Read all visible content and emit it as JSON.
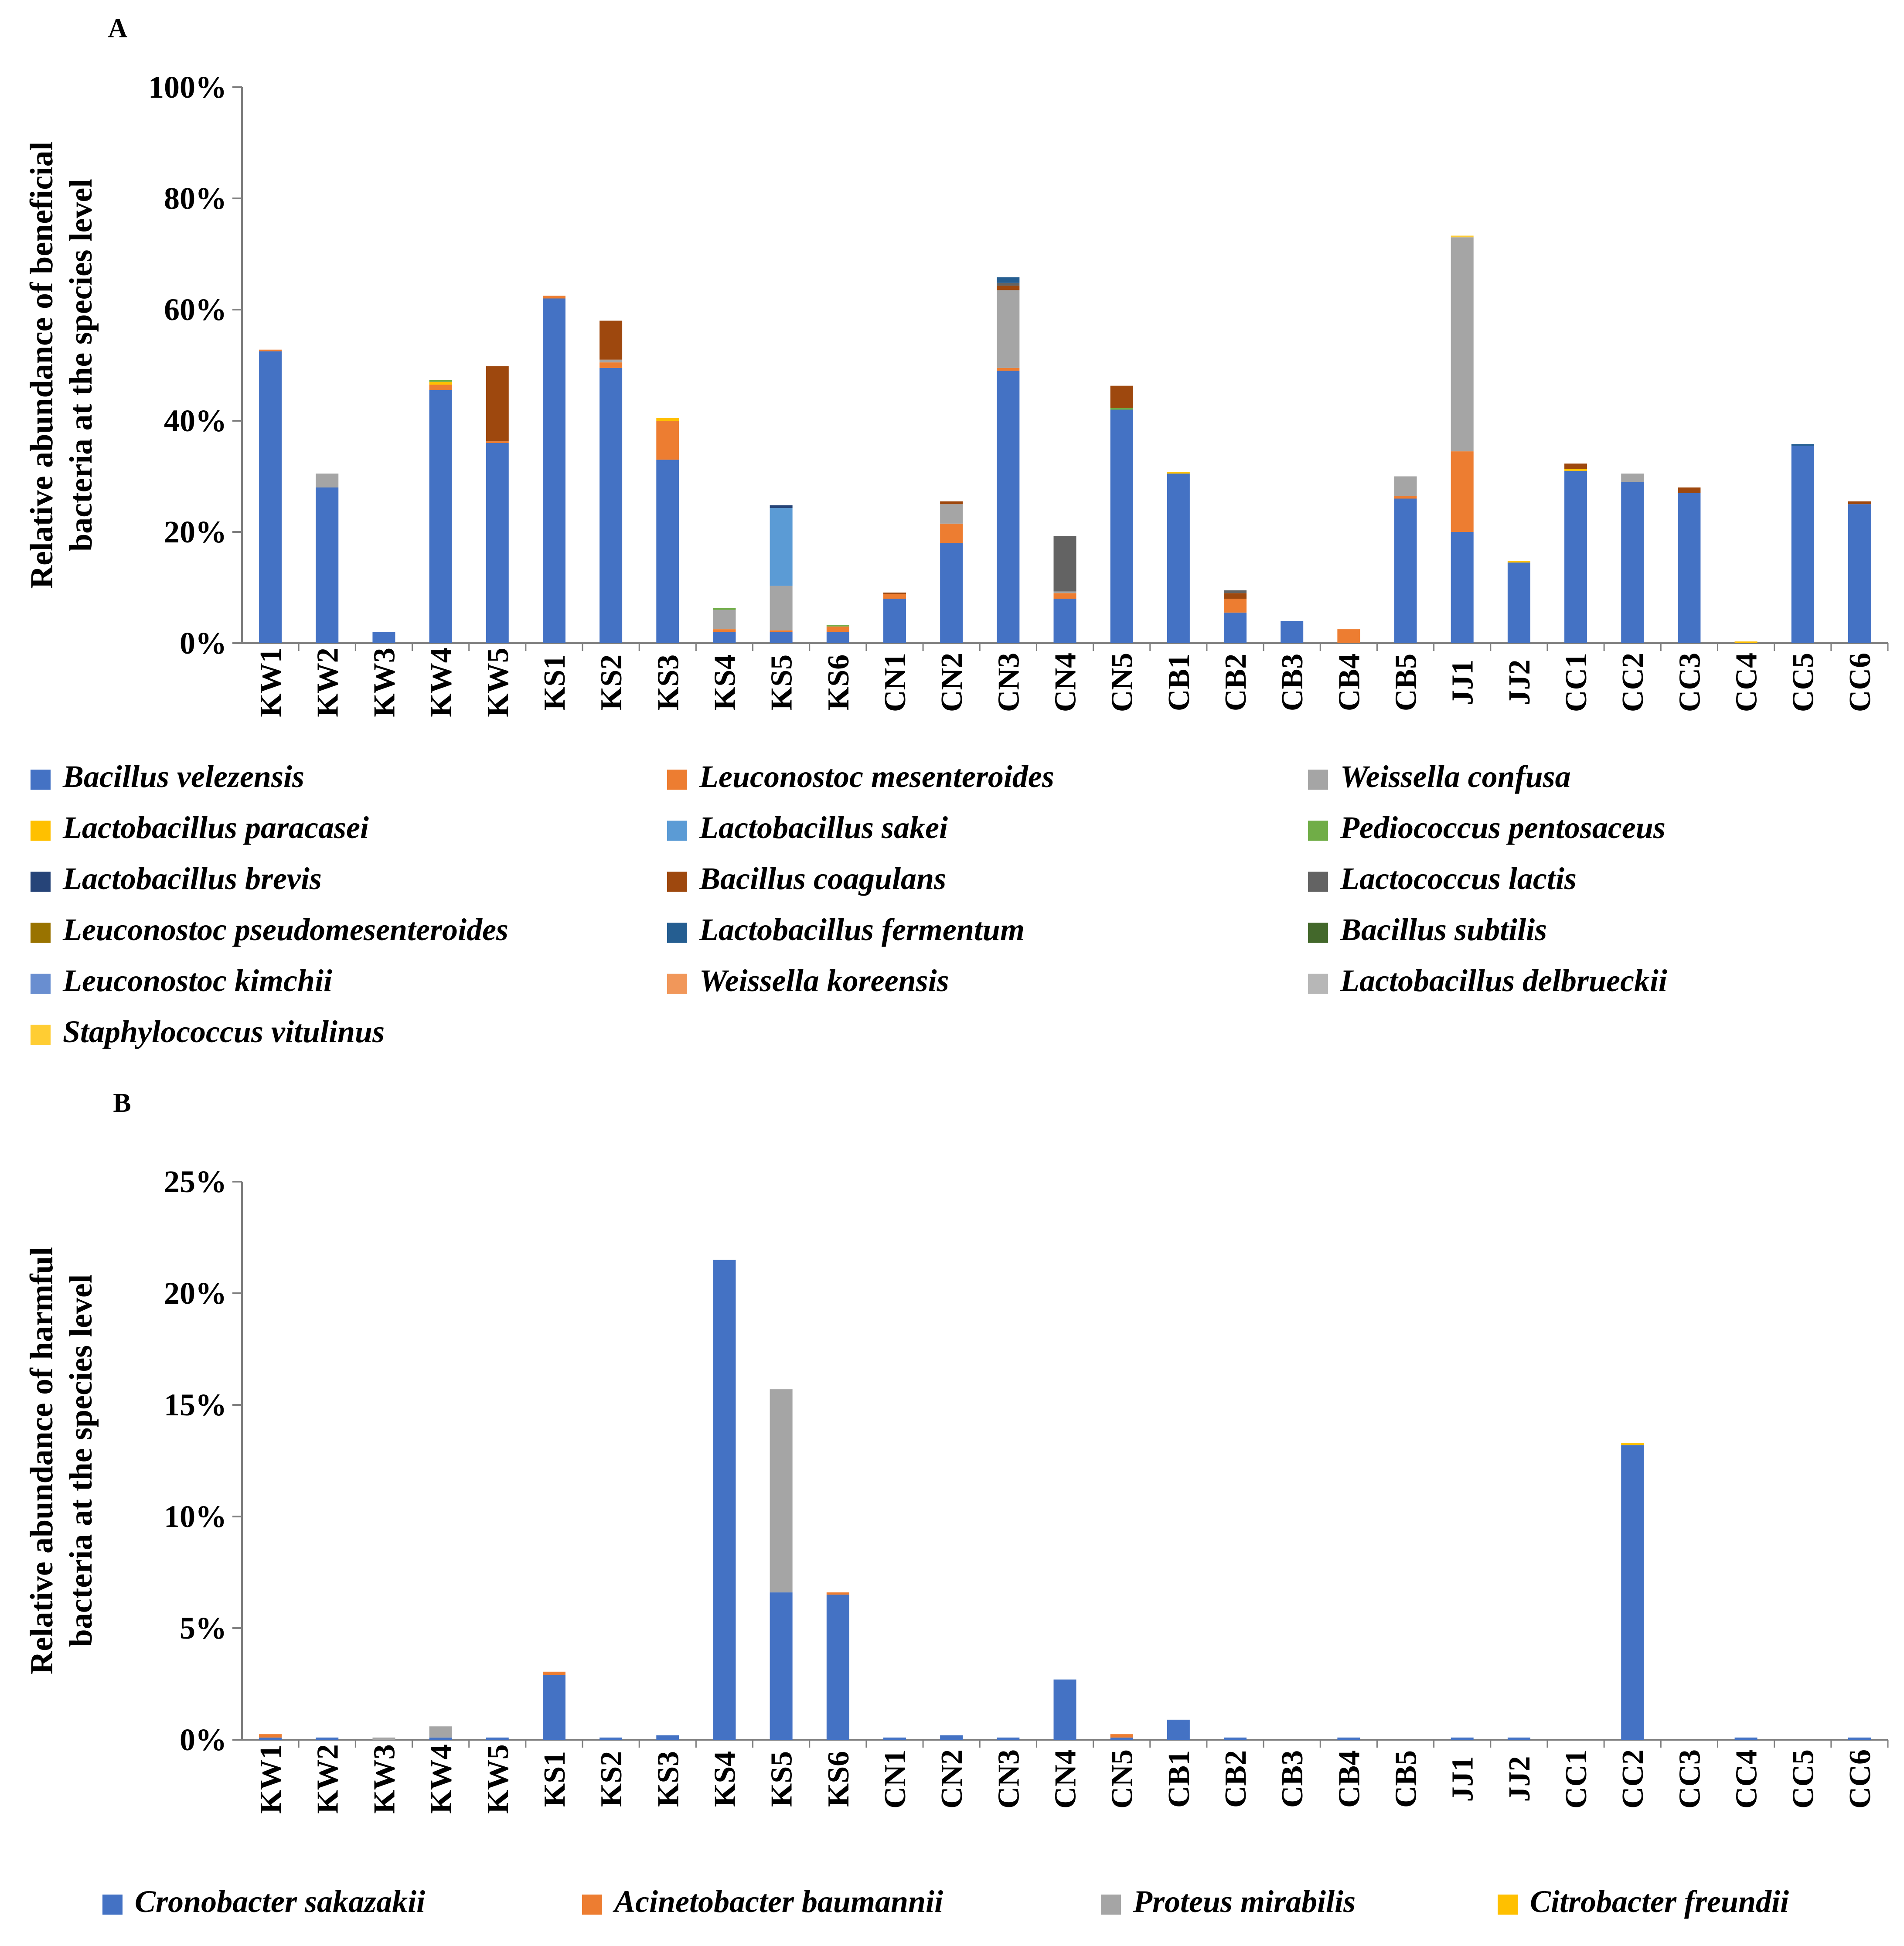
{
  "chart_data": [
    {
      "panel_label": "A",
      "type": "bar",
      "stacked": true,
      "ylabel_line1": "Relative abundance of beneficial",
      "ylabel_line2": "bacteria at the species level",
      "ylim": [
        0,
        100
      ],
      "yticks": [
        0,
        20,
        40,
        60,
        80,
        100
      ],
      "ytick_labels": [
        "0%",
        "20%",
        "40%",
        "60%",
        "80%",
        "100%"
      ],
      "categories": [
        "KW1",
        "KW2",
        "KW3",
        "KW4",
        "KW5",
        "KS1",
        "KS2",
        "KS3",
        "KS4",
        "KS5",
        "KS6",
        "CN1",
        "CN2",
        "CN3",
        "CN4",
        "CN5",
        "CB1",
        "CB2",
        "CB3",
        "CB4",
        "CB5",
        "JJ1",
        "JJ2",
        "CC1",
        "CC2",
        "CC3",
        "CC4",
        "CC5",
        "CC6"
      ],
      "series": [
        {
          "name": "Bacillus velezensis",
          "color": "#4472C4",
          "values": [
            52.5,
            28,
            2,
            45.5,
            36,
            62,
            49.5,
            33,
            2,
            2,
            2,
            8,
            18,
            49,
            8,
            42,
            30.5,
            5.5,
            4,
            0,
            26,
            20,
            14.5,
            31,
            29,
            27,
            0,
            35.5,
            25
          ]
        },
        {
          "name": "Leuconostoc mesenteroides",
          "color": "#ED7D31",
          "values": [
            0.3,
            0,
            0,
            1,
            0.3,
            0.5,
            1,
            7,
            0.5,
            0.3,
            1,
            0.8,
            3.5,
            0.5,
            1,
            0,
            0,
            2.5,
            0,
            2.5,
            0.5,
            14.5,
            0,
            0,
            0,
            0,
            0,
            0,
            0
          ]
        },
        {
          "name": "Weissella confusa",
          "color": "#A5A5A5",
          "values": [
            0,
            2.5,
            0,
            0,
            0,
            0,
            0.5,
            0,
            3.5,
            8,
            0,
            0,
            3.5,
            14,
            0.3,
            0,
            0,
            0,
            0,
            0,
            3.5,
            38.5,
            0,
            0,
            1.5,
            0,
            0,
            0,
            0
          ]
        },
        {
          "name": "Lactobacillus paracasei",
          "color": "#FFC000",
          "values": [
            0,
            0,
            0,
            0.5,
            0,
            0,
            0,
            0.5,
            0,
            0,
            0,
            0,
            0,
            0,
            0,
            0,
            0.3,
            0,
            0,
            0,
            0,
            0,
            0.3,
            0.3,
            0,
            0,
            0.3,
            0,
            0
          ]
        },
        {
          "name": "Lactobacillus sakei",
          "color": "#5B9BD5",
          "values": [
            0,
            0,
            0,
            0,
            0,
            0,
            0,
            0,
            0,
            14,
            0,
            0,
            0,
            0,
            0,
            0,
            0,
            0,
            0,
            0,
            0,
            0,
            0,
            0,
            0,
            0,
            0,
            0,
            0
          ]
        },
        {
          "name": "Pediococcus pentosaceus",
          "color": "#70AD47",
          "values": [
            0,
            0,
            0,
            0.3,
            0,
            0,
            0,
            0,
            0.3,
            0,
            0.3,
            0,
            0,
            0,
            0,
            0.3,
            0,
            0,
            0,
            0,
            0,
            0,
            0,
            0,
            0,
            0,
            0,
            0,
            0
          ]
        },
        {
          "name": "Lactobacillus brevis",
          "color": "#264478",
          "values": [
            0,
            0,
            0,
            0,
            0,
            0,
            0,
            0,
            0,
            0.5,
            0,
            0,
            0,
            0,
            0,
            0,
            0,
            0,
            0,
            0,
            0,
            0,
            0,
            0,
            0,
            0,
            0,
            0,
            0
          ]
        },
        {
          "name": "Bacillus coagulans",
          "color": "#9E480E",
          "values": [
            0,
            0,
            0,
            0,
            13.5,
            0,
            7,
            0,
            0,
            0,
            0,
            0.3,
            0.5,
            0.8,
            0,
            4,
            0,
            1,
            0,
            0,
            0,
            0,
            0,
            1,
            0,
            1,
            0,
            0,
            0.5
          ]
        },
        {
          "name": "Lactococcus lactis",
          "color": "#636363",
          "values": [
            0,
            0,
            0,
            0,
            0,
            0,
            0,
            0,
            0,
            0,
            0,
            0,
            0,
            0.5,
            10,
            0,
            0,
            0.5,
            0,
            0,
            0,
            0,
            0,
            0,
            0,
            0,
            0,
            0,
            0
          ]
        },
        {
          "name": "Leuconostoc pseudomesenteroides",
          "color": "#997300",
          "values": [
            0,
            0,
            0,
            0,
            0,
            0,
            0,
            0,
            0,
            0,
            0,
            0,
            0,
            0,
            0,
            0,
            0,
            0,
            0,
            0,
            0,
            0,
            0,
            0,
            0,
            0,
            0,
            0,
            0
          ]
        },
        {
          "name": "Lactobacillus fermentum",
          "color": "#255E91",
          "values": [
            0,
            0,
            0,
            0,
            0,
            0,
            0,
            0,
            0,
            0,
            0,
            0,
            0,
            1,
            0,
            0,
            0,
            0,
            0,
            0,
            0,
            0,
            0,
            0,
            0,
            0,
            0,
            0.3,
            0
          ]
        },
        {
          "name": "Bacillus subtilis",
          "color": "#43682B",
          "values": [
            0,
            0,
            0,
            0,
            0,
            0,
            0,
            0,
            0,
            0,
            0,
            0,
            0,
            0,
            0,
            0,
            0,
            0,
            0,
            0,
            0,
            0,
            0,
            0,
            0,
            0,
            0,
            0,
            0
          ]
        },
        {
          "name": "Leuconostoc kimchii",
          "color": "#698ED0",
          "values": [
            0,
            0,
            0,
            0,
            0,
            0,
            0,
            0,
            0,
            0,
            0,
            0,
            0,
            0,
            0,
            0,
            0,
            0,
            0,
            0,
            0,
            0,
            0,
            0,
            0,
            0,
            0,
            0,
            0
          ]
        },
        {
          "name": "Weissella koreensis",
          "color": "#F1975A",
          "values": [
            0,
            0,
            0,
            0,
            0,
            0,
            0,
            0,
            0,
            0,
            0,
            0,
            0,
            0,
            0,
            0,
            0,
            0,
            0,
            0,
            0,
            0,
            0,
            0,
            0,
            0,
            0,
            0,
            0
          ]
        },
        {
          "name": "Lactobacillus delbrueckii",
          "color": "#B7B7B7",
          "values": [
            0,
            0,
            0,
            0,
            0,
            0,
            0,
            0,
            0,
            0,
            0,
            0,
            0,
            0,
            0,
            0,
            0,
            0,
            0,
            0,
            0,
            0,
            0,
            0,
            0,
            0,
            0,
            0,
            0
          ]
        },
        {
          "name": "Staphylococcus vitulinus",
          "color": "#FFCD33",
          "values": [
            0,
            0,
            0,
            0,
            0,
            0,
            0,
            0,
            0,
            0,
            0,
            0,
            0,
            0,
            0,
            0,
            0,
            0,
            0,
            0,
            0,
            0.3,
            0,
            0,
            0,
            0,
            0,
            0,
            0
          ]
        }
      ]
    },
    {
      "panel_label": "B",
      "type": "bar",
      "stacked": true,
      "ylabel_line1": "Relative abundance of harmful",
      "ylabel_line2": "bacteria at the species level",
      "ylim": [
        0,
        25
      ],
      "yticks": [
        0,
        5,
        10,
        15,
        20,
        25
      ],
      "ytick_labels": [
        "0%",
        "5%",
        "10%",
        "15%",
        "20%",
        "25%"
      ],
      "categories": [
        "KW1",
        "KW2",
        "KW3",
        "KW4",
        "KW5",
        "KS1",
        "KS2",
        "KS3",
        "KS4",
        "KS5",
        "KS6",
        "CN1",
        "CN2",
        "CN3",
        "CN4",
        "CN5",
        "CB1",
        "CB2",
        "CB3",
        "CB4",
        "CB5",
        "JJ1",
        "JJ2",
        "CC1",
        "CC2",
        "CC3",
        "CC4",
        "CC5",
        "CC6"
      ],
      "series": [
        {
          "name": "Cronobacter sakazakii",
          "color": "#4472C4",
          "values": [
            0.1,
            0.1,
            0,
            0.1,
            0.1,
            2.9,
            0.1,
            0.2,
            21.5,
            6.6,
            6.5,
            0.1,
            0.2,
            0.1,
            2.7,
            0.1,
            0.9,
            0.1,
            0,
            0.1,
            0,
            0.1,
            0.1,
            0,
            13.2,
            0,
            0.1,
            0,
            0.1
          ]
        },
        {
          "name": "Acinetobacter baumannii",
          "color": "#ED7D31",
          "values": [
            0.15,
            0,
            0,
            0,
            0,
            0.15,
            0,
            0,
            0,
            0,
            0.1,
            0,
            0,
            0,
            0,
            0.15,
            0,
            0,
            0,
            0,
            0,
            0,
            0,
            0,
            0,
            0,
            0,
            0,
            0
          ]
        },
        {
          "name": "Proteus mirabilis",
          "color": "#A5A5A5",
          "values": [
            0,
            0,
            0.1,
            0.5,
            0,
            0,
            0,
            0,
            0,
            9.1,
            0,
            0,
            0,
            0,
            0,
            0,
            0,
            0,
            0,
            0,
            0,
            0,
            0,
            0,
            0,
            0,
            0,
            0,
            0
          ]
        },
        {
          "name": "Citrobacter freundii",
          "color": "#FFC000",
          "values": [
            0,
            0,
            0,
            0,
            0,
            0,
            0,
            0,
            0,
            0,
            0,
            0,
            0,
            0,
            0,
            0,
            0,
            0,
            0,
            0,
            0,
            0,
            0,
            0,
            0.1,
            0,
            0,
            0,
            0
          ]
        }
      ]
    }
  ]
}
